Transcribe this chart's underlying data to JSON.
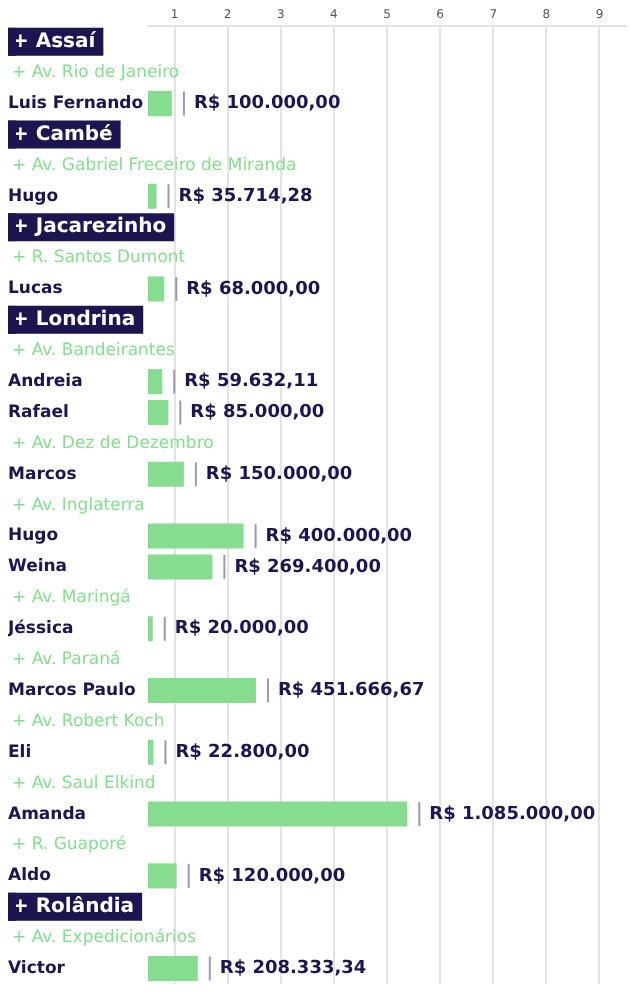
{
  "chart_data": {
    "type": "bar",
    "orientation": "horizontal",
    "categories": [
      "+ Assaí",
      "+ Av. Rio de Janeiro",
      "Luis Fernando",
      "+ Cambé",
      "+ Av. Gabriel Freceiro de Miranda",
      "Hugo",
      "+ Jacarezinho",
      "+ R. Santos Dumont",
      "Lucas",
      "+ Londrina",
      "+ Av. Bandeirantes",
      "Andreia",
      "Rafael",
      "+ Av. Dez de Dezembro",
      "Marcos",
      "+ Av. Inglaterra",
      "Hugo",
      "Weina",
      "+ Av. Maringá",
      "Jéssica",
      "+ Av. Paraná",
      "Marcos Paulo",
      "+ Av. Robert Koch",
      "Eli",
      "+ Av. Saul Elkind",
      "Amanda",
      "+ R. Guaporé",
      "Aldo",
      "+ Rolândia",
      "+ Av. Expedicionários",
      "Victor"
    ],
    "values": [
      null,
      null,
      100000,
      null,
      null,
      35714.28,
      null,
      null,
      68000,
      null,
      null,
      59632.11,
      85000,
      null,
      150000,
      null,
      400000,
      269400,
      null,
      20000,
      null,
      451666.67,
      null,
      22800,
      null,
      1085000,
      null,
      120000,
      null,
      null,
      208333.34
    ],
    "value_labels": [
      null,
      null,
      "R$ 100.000,00",
      null,
      null,
      "R$ 35.714,28",
      null,
      null,
      "R$ 68.000,00",
      null,
      null,
      "R$ 59.632,11",
      "R$ 85.000,00",
      null,
      "R$ 150.000,00",
      null,
      "R$ 400.000,00",
      "R$ 269.400,00",
      null,
      "R$ 20.000,00",
      null,
      "R$ 451.666,67",
      null,
      "R$ 22.800,00",
      null,
      "R$ 1.085.000,00",
      null,
      "R$ 120.000,00",
      null,
      null,
      "R$ 208.333,34"
    ],
    "color": "#86dd8f",
    "x2lim": [
      0.5,
      9.5
    ],
    "x2ticks": [
      1,
      2,
      3,
      4,
      5,
      6,
      7,
      8,
      9
    ],
    "grid": "x"
  }
}
